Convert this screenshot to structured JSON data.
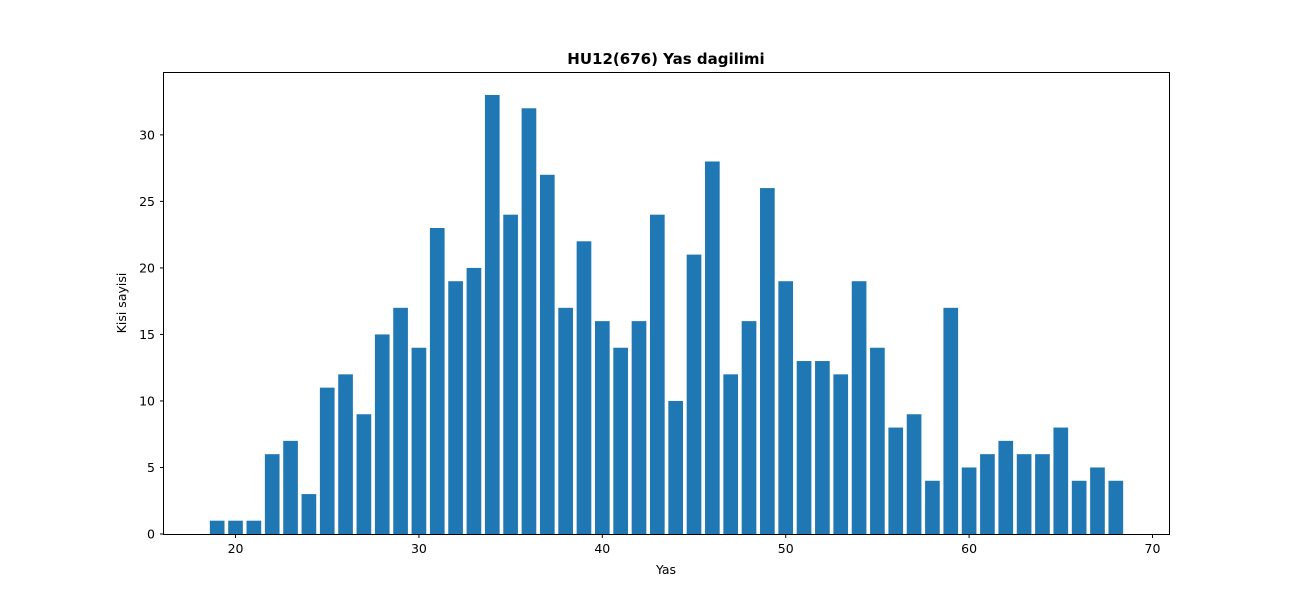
{
  "chart_data": {
    "type": "bar",
    "title": "HU12(676) Yas dagilimi",
    "xlabel": "Yas",
    "ylabel": "Kisi sayisi",
    "x": [
      19,
      20,
      21,
      22,
      23,
      24,
      25,
      26,
      27,
      28,
      29,
      30,
      31,
      32,
      33,
      34,
      35,
      36,
      37,
      38,
      39,
      40,
      41,
      42,
      43,
      44,
      45,
      46,
      47,
      48,
      49,
      50,
      51,
      52,
      53,
      54,
      55,
      56,
      57,
      58,
      59,
      60,
      61,
      62,
      63,
      64,
      65,
      66,
      67,
      68
    ],
    "values": [
      1,
      1,
      1,
      6,
      7,
      3,
      11,
      12,
      9,
      15,
      17,
      14,
      23,
      19,
      20,
      33,
      24,
      32,
      27,
      17,
      22,
      16,
      14,
      16,
      24,
      10,
      21,
      28,
      12,
      16,
      26,
      19,
      13,
      13,
      12,
      19,
      14,
      8,
      9,
      4,
      17,
      5,
      6,
      7,
      6,
      6,
      8,
      4,
      5,
      4
    ],
    "xlim": [
      16.1,
      70.9
    ],
    "ylim": [
      0,
      34.65
    ],
    "xticks": [
      20,
      30,
      40,
      50,
      60,
      70
    ],
    "yticks": [
      0,
      5,
      10,
      15,
      20,
      25,
      30
    ],
    "bar_color": "#1f77b4",
    "grid": false
  }
}
